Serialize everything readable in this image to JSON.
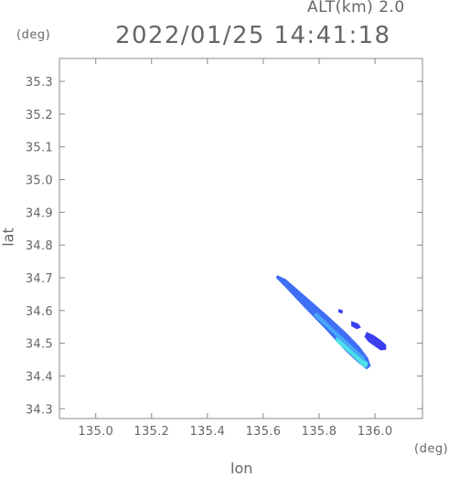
{
  "header": {
    "alt_label": "ALT(km)  2.0",
    "timestamp": "2022/01/25 14:41:18",
    "y_unit": "(deg)",
    "x_unit": "(deg)"
  },
  "colors": {
    "axis": "#888888",
    "text": "#666666",
    "deep_blue": "#3b3ff0",
    "mid_blue": "#3f6ff5",
    "light_blue": "#46a8f8",
    "cyan": "#4fe0e8"
  },
  "chart_data": {
    "type": "scatter",
    "title": "2022/01/25 14:41:18",
    "xlabel": "lon",
    "ylabel": "lat",
    "xlim": [
      134.87,
      136.17
    ],
    "ylim": [
      34.27,
      35.37
    ],
    "x_ticks": [
      "135.0",
      "135.2",
      "135.4",
      "135.6",
      "135.8",
      "136.0"
    ],
    "y_ticks": [
      "34.3",
      "34.4",
      "34.5",
      "34.6",
      "34.7",
      "34.8",
      "34.9",
      "35.0",
      "35.1",
      "35.2",
      "35.3"
    ],
    "grid": false,
    "echo_regions": [
      {
        "name": "main-band",
        "color": "#3f6ff5",
        "polygon": [
          [
            135.65,
            34.708
          ],
          [
            135.68,
            34.696
          ],
          [
            135.74,
            34.652
          ],
          [
            135.83,
            34.585
          ],
          [
            135.9,
            34.53
          ],
          [
            135.945,
            34.49
          ],
          [
            135.975,
            34.455
          ],
          [
            135.985,
            34.43
          ],
          [
            135.97,
            34.42
          ],
          [
            135.94,
            34.44
          ],
          [
            135.89,
            34.48
          ],
          [
            135.82,
            34.545
          ],
          [
            135.74,
            34.615
          ],
          [
            135.68,
            34.67
          ],
          [
            135.645,
            34.7
          ]
        ]
      },
      {
        "name": "cyan-core",
        "color": "#4fe0e8",
        "polygon": [
          [
            135.86,
            34.505
          ],
          [
            135.92,
            34.46
          ],
          [
            135.955,
            34.43
          ],
          [
            135.97,
            34.425
          ],
          [
            135.975,
            34.44
          ],
          [
            135.95,
            34.46
          ],
          [
            135.9,
            34.495
          ],
          [
            135.86,
            34.52
          ]
        ]
      },
      {
        "name": "light-band",
        "color": "#46a8f8",
        "polygon": [
          [
            135.78,
            34.585
          ],
          [
            135.85,
            34.53
          ],
          [
            135.92,
            34.475
          ],
          [
            135.96,
            34.445
          ],
          [
            135.965,
            34.455
          ],
          [
            135.92,
            34.49
          ],
          [
            135.85,
            34.545
          ],
          [
            135.79,
            34.595
          ]
        ]
      },
      {
        "name": "east-cell",
        "color": "#3b3ff0",
        "polygon": [
          [
            135.97,
            34.535
          ],
          [
            135.995,
            34.525
          ],
          [
            136.02,
            34.51
          ],
          [
            136.04,
            34.495
          ],
          [
            136.04,
            34.48
          ],
          [
            136.02,
            34.478
          ],
          [
            136.0,
            34.49
          ],
          [
            135.975,
            34.505
          ],
          [
            135.962,
            34.52
          ]
        ]
      },
      {
        "name": "small-cell-a",
        "color": "#3b3ff0",
        "polygon": [
          [
            135.915,
            34.568
          ],
          [
            135.94,
            34.56
          ],
          [
            135.95,
            34.548
          ],
          [
            135.935,
            34.543
          ],
          [
            135.915,
            34.552
          ]
        ]
      },
      {
        "name": "small-cell-b",
        "color": "#3b3ff0",
        "polygon": [
          [
            135.87,
            34.605
          ],
          [
            135.885,
            34.6
          ],
          [
            135.883,
            34.59
          ],
          [
            135.868,
            34.595
          ]
        ]
      }
    ]
  }
}
